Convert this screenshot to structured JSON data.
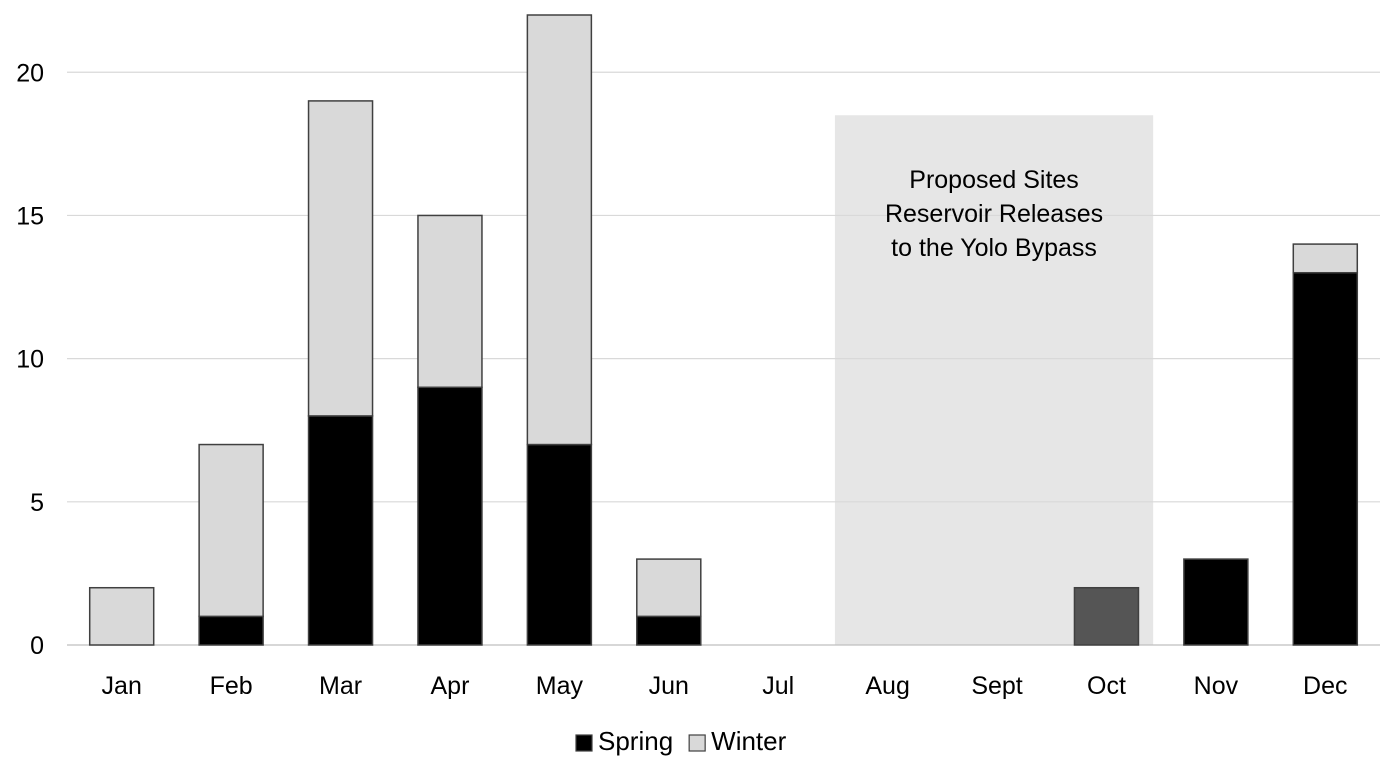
{
  "chart_data": {
    "type": "bar",
    "stacked": true,
    "categories": [
      "Jan",
      "Feb",
      "Mar",
      "Apr",
      "May",
      "Jun",
      "Jul",
      "Aug",
      "Sept",
      "Oct",
      "Nov",
      "Dec"
    ],
    "series": [
      {
        "name": "Spring",
        "values": [
          0,
          1,
          8,
          9,
          7,
          1,
          0,
          0,
          0,
          2,
          3,
          13
        ],
        "color": "#000000"
      },
      {
        "name": "Winter",
        "values": [
          2,
          6,
          11,
          6,
          15,
          2,
          0,
          0,
          0,
          0,
          0,
          1
        ],
        "color": "#d9d9d9"
      }
    ],
    "highlight_colors": {
      "Oct": "#555555"
    },
    "ylim": [
      0,
      22
    ],
    "yticks": [
      0,
      5,
      10,
      15,
      20
    ],
    "grid": true,
    "legend_position": "bottom-center",
    "annotation": {
      "lines": [
        "Proposed Sites",
        "Reservoir Releases",
        "to the Yolo Bypass"
      ],
      "span_start": "Aug",
      "span_end": "Oct",
      "y_top": 18.5,
      "color": "#e6e6e6"
    },
    "title": "",
    "xlabel": "",
    "ylabel": ""
  }
}
